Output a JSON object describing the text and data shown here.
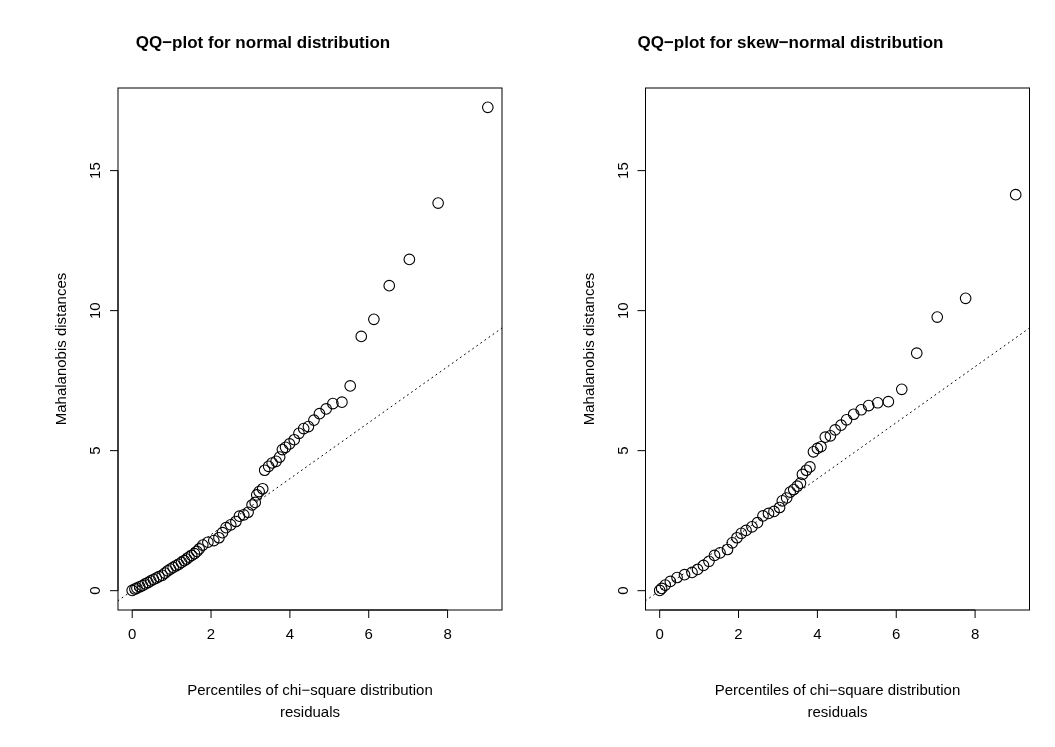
{
  "chart_data": [
    {
      "type": "scatter",
      "title": "QQ−plot for normal distribution",
      "xlabel": "Percentiles of chi−square distribution\nresiduals",
      "ylabel": "Mahalanobis distances",
      "xlim": [
        -0.36,
        9.38
      ],
      "ylim": [
        -0.69,
        17.95
      ],
      "xticks": [
        0,
        2,
        4,
        6,
        8
      ],
      "yticks": [
        0,
        5,
        10,
        15
      ],
      "series": [
        {
          "type": "scatter",
          "marker": "circle",
          "color": "#000000",
          "x": [
            0,
            0.07,
            0.12,
            0.19,
            0.26,
            0.33,
            0.4,
            0.47,
            0.54,
            0.61,
            0.68,
            0.76,
            0.83,
            0.9,
            0.97,
            1.04,
            1.11,
            1.18,
            1.25,
            1.32,
            1.38,
            1.44,
            1.51,
            1.58,
            1.64,
            1.7,
            1.79,
            1.92,
            2.07,
            2.2,
            2.29,
            2.38,
            2.5,
            2.63,
            2.72,
            2.83,
            2.94,
            3.04,
            3.12,
            3.16,
            3.22,
            3.31,
            3.36,
            3.46,
            3.55,
            3.65,
            3.74,
            3.81,
            3.89,
            3.99,
            4.11,
            4.23,
            4.35,
            4.47,
            4.61,
            4.75,
            4.92,
            5.09,
            5.32,
            5.53,
            5.81,
            6.13,
            6.52,
            7.03,
            7.76,
            9.02
          ],
          "values": [
            0.01,
            0.06,
            0.09,
            0.14,
            0.18,
            0.24,
            0.29,
            0.35,
            0.4,
            0.45,
            0.5,
            0.55,
            0.63,
            0.71,
            0.77,
            0.83,
            0.89,
            0.94,
            1.01,
            1.07,
            1.13,
            1.2,
            1.26,
            1.32,
            1.4,
            1.49,
            1.63,
            1.73,
            1.79,
            1.89,
            2.07,
            2.25,
            2.35,
            2.47,
            2.66,
            2.71,
            2.8,
            3.06,
            3.15,
            3.42,
            3.54,
            3.64,
            4.3,
            4.44,
            4.56,
            4.62,
            4.77,
            5.04,
            5.12,
            5.24,
            5.39,
            5.62,
            5.79,
            5.86,
            6.09,
            6.32,
            6.49,
            6.68,
            6.73,
            7.31,
            9.08,
            9.69,
            10.89,
            11.83,
            13.84,
            17.26
          ]
        },
        {
          "type": "line",
          "line_style": "dotted",
          "color": "#000000",
          "x": [
            -0.36,
            9.38
          ],
          "values": [
            -0.36,
            9.38
          ]
        }
      ]
    },
    {
      "type": "scatter",
      "title": "QQ−plot for skew−normal distribution",
      "xlabel": "Percentiles of chi−square distribution\nresiduals",
      "ylabel": "Mahalanobis distances",
      "xlim": [
        -0.36,
        9.38
      ],
      "ylim": [
        -0.69,
        17.95
      ],
      "xticks": [
        0,
        2,
        4,
        6,
        8
      ],
      "yticks": [
        0,
        5,
        10,
        15
      ],
      "series": [
        {
          "type": "scatter",
          "marker": "circle",
          "color": "#000000",
          "x": [
            0,
            0.05,
            0.14,
            0.27,
            0.44,
            0.63,
            0.82,
            0.96,
            1.11,
            1.25,
            1.39,
            1.53,
            1.72,
            1.84,
            1.96,
            2.07,
            2.19,
            2.34,
            2.48,
            2.62,
            2.76,
            2.9,
            3.04,
            3.11,
            3.22,
            3.31,
            3.4,
            3.49,
            3.57,
            3.62,
            3.72,
            3.81,
            3.9,
            4,
            4.09,
            4.2,
            4.33,
            4.45,
            4.6,
            4.74,
            4.92,
            5.11,
            5.3,
            5.53,
            5.8,
            6.14,
            6.52,
            7.04,
            7.76,
            9.03
          ],
          "values": [
            0.01,
            0.08,
            0.2,
            0.33,
            0.47,
            0.57,
            0.65,
            0.76,
            0.9,
            1.05,
            1.26,
            1.35,
            1.47,
            1.71,
            1.89,
            2.05,
            2.15,
            2.28,
            2.43,
            2.67,
            2.76,
            2.83,
            2.97,
            3.21,
            3.31,
            3.52,
            3.61,
            3.73,
            3.84,
            4.15,
            4.3,
            4.42,
            4.96,
            5.08,
            5.14,
            5.48,
            5.53,
            5.74,
            5.91,
            6.1,
            6.3,
            6.46,
            6.61,
            6.71,
            6.75,
            7.19,
            8.48,
            9.77,
            10.44,
            14.14
          ]
        },
        {
          "type": "line",
          "line_style": "dotted",
          "color": "#000000",
          "x": [
            -0.36,
            9.38
          ],
          "values": [
            -0.36,
            9.38
          ]
        }
      ]
    }
  ]
}
